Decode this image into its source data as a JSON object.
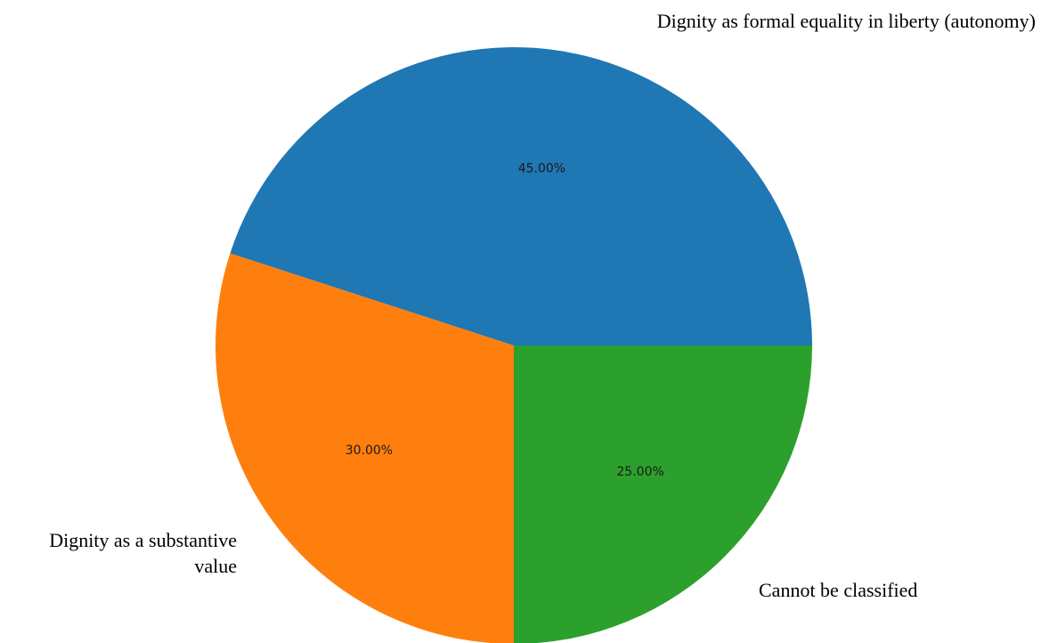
{
  "chart_data": {
    "type": "pie",
    "title": "",
    "slices": [
      {
        "label": "Dignity as formal equality in liberty (autonomy)",
        "label_lines": [
          "Dignity as formal equality in liberty (autonomy)"
        ],
        "value": 45.0,
        "pct_text": "45.00%",
        "color": "#1f77b4"
      },
      {
        "label": "Dignity as a substantive value",
        "label_lines": [
          "Dignity as a substantive",
          "value"
        ],
        "value": 30.0,
        "pct_text": "30.00%",
        "color": "#ff7f0e"
      },
      {
        "label": "Cannot be classified",
        "label_lines": [
          "Cannot be classified"
        ],
        "value": 25.0,
        "pct_text": "25.00%",
        "color": "#2ca02c"
      }
    ],
    "start_angle_deg": 0,
    "direction": "counterclockwise",
    "legend": "none"
  }
}
